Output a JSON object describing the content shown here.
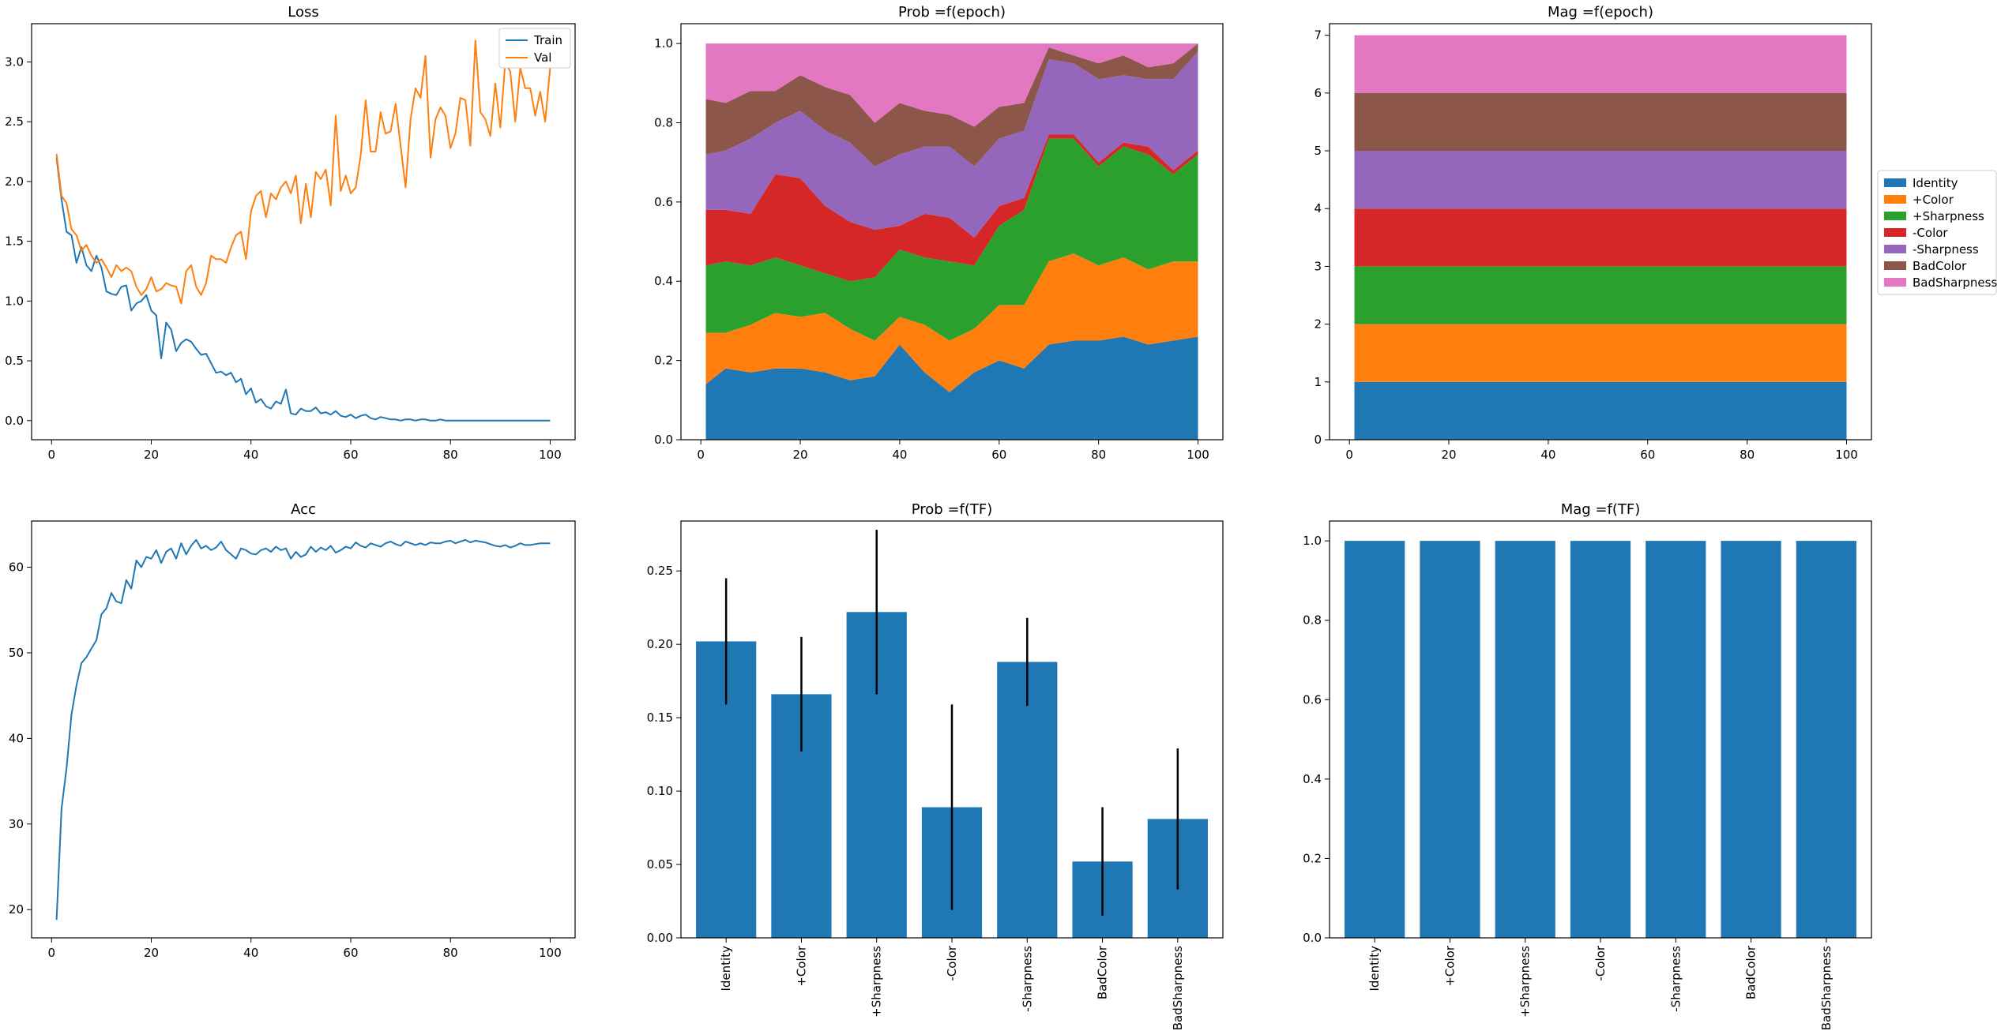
{
  "chart_data": [
    {
      "type": "line",
      "title": "Loss",
      "xlabel": "",
      "ylabel": "",
      "xlim": [
        -4,
        105
      ],
      "ylim": [
        -0.16,
        3.32
      ],
      "xticks": [
        0,
        20,
        40,
        60,
        80,
        100
      ],
      "yticks": [
        0.0,
        0.5,
        1.0,
        1.5,
        2.0,
        2.5,
        3.0
      ],
      "legend": "top-right",
      "series": [
        {
          "name": "Train",
          "color": "#1f77b4",
          "x": [
            1,
            2,
            3,
            4,
            5,
            6,
            7,
            8,
            9,
            10,
            11,
            12,
            13,
            14,
            15,
            16,
            17,
            18,
            19,
            20,
            21,
            22,
            23,
            24,
            25,
            26,
            27,
            28,
            29,
            30,
            31,
            32,
            33,
            34,
            35,
            36,
            37,
            38,
            39,
            40,
            41,
            42,
            43,
            44,
            45,
            46,
            47,
            48,
            49,
            50,
            51,
            52,
            53,
            54,
            55,
            56,
            57,
            58,
            59,
            60,
            61,
            62,
            63,
            64,
            65,
            66,
            67,
            68,
            69,
            70,
            71,
            72,
            73,
            74,
            75,
            76,
            77,
            78,
            79,
            80,
            81,
            82,
            83,
            84,
            85,
            86,
            87,
            88,
            89,
            90,
            91,
            92,
            93,
            94,
            95,
            96,
            97,
            98,
            99,
            100
          ],
          "values": [
            2.2,
            1.85,
            1.58,
            1.55,
            1.32,
            1.45,
            1.3,
            1.25,
            1.38,
            1.28,
            1.08,
            1.06,
            1.05,
            1.12,
            1.13,
            0.92,
            0.98,
            1.0,
            1.05,
            0.92,
            0.88,
            0.52,
            0.82,
            0.76,
            0.58,
            0.65,
            0.68,
            0.66,
            0.6,
            0.55,
            0.56,
            0.48,
            0.4,
            0.41,
            0.38,
            0.4,
            0.32,
            0.35,
            0.22,
            0.27,
            0.15,
            0.18,
            0.12,
            0.1,
            0.16,
            0.14,
            0.26,
            0.06,
            0.05,
            0.1,
            0.08,
            0.08,
            0.11,
            0.06,
            0.07,
            0.05,
            0.08,
            0.04,
            0.03,
            0.05,
            0.02,
            0.04,
            0.05,
            0.02,
            0.01,
            0.03,
            0.02,
            0.01,
            0.01,
            0.0,
            0.01,
            0.01,
            0.0,
            0.01,
            0.01,
            0.0,
            0.0,
            0.01,
            0.0,
            0.0,
            0.0,
            0.0,
            0.0,
            0.0,
            0.0,
            0.0,
            0.0,
            0.0,
            0.0,
            0.0,
            0.0,
            0.0,
            0.0,
            0.0,
            0.0,
            0.0,
            0.0,
            0.0,
            0.0,
            0.0
          ]
        },
        {
          "name": "Val",
          "color": "#ff7f0e",
          "x": [
            1,
            2,
            3,
            4,
            5,
            6,
            7,
            8,
            9,
            10,
            11,
            12,
            13,
            14,
            15,
            16,
            17,
            18,
            19,
            20,
            21,
            22,
            23,
            24,
            25,
            26,
            27,
            28,
            29,
            30,
            31,
            32,
            33,
            34,
            35,
            36,
            37,
            38,
            39,
            40,
            41,
            42,
            43,
            44,
            45,
            46,
            47,
            48,
            49,
            50,
            51,
            52,
            53,
            54,
            55,
            56,
            57,
            58,
            59,
            60,
            61,
            62,
            63,
            64,
            65,
            66,
            67,
            68,
            69,
            70,
            71,
            72,
            73,
            74,
            75,
            76,
            77,
            78,
            79,
            80,
            81,
            82,
            83,
            84,
            85,
            86,
            87,
            88,
            89,
            90,
            91,
            92,
            93,
            94,
            95,
            96,
            97,
            98,
            99,
            100
          ],
          "values": [
            2.23,
            1.88,
            1.82,
            1.6,
            1.55,
            1.42,
            1.47,
            1.38,
            1.32,
            1.35,
            1.28,
            1.2,
            1.3,
            1.25,
            1.28,
            1.25,
            1.12,
            1.05,
            1.1,
            1.2,
            1.08,
            1.1,
            1.15,
            1.13,
            1.12,
            0.98,
            1.25,
            1.3,
            1.12,
            1.05,
            1.15,
            1.38,
            1.35,
            1.35,
            1.32,
            1.45,
            1.55,
            1.58,
            1.35,
            1.75,
            1.88,
            1.92,
            1.7,
            1.9,
            1.85,
            1.95,
            2.0,
            1.9,
            2.05,
            1.65,
            1.98,
            1.7,
            2.08,
            2.02,
            2.1,
            1.8,
            2.55,
            1.92,
            2.05,
            1.9,
            1.95,
            2.22,
            2.68,
            2.25,
            2.25,
            2.58,
            2.4,
            2.42,
            2.65,
            2.3,
            1.95,
            2.52,
            2.78,
            2.7,
            3.05,
            2.2,
            2.52,
            2.62,
            2.55,
            2.28,
            2.4,
            2.7,
            2.68,
            2.3,
            3.18,
            2.58,
            2.52,
            2.38,
            2.82,
            2.45,
            3.0,
            2.92,
            2.5,
            2.95,
            2.78,
            2.78,
            2.55,
            2.75,
            2.5,
            2.95
          ]
        }
      ]
    },
    {
      "type": "area",
      "stacked": true,
      "title": "Prob =f(epoch)",
      "xlabel": "",
      "ylabel": "",
      "xlim": [
        -4,
        105
      ],
      "ylim": [
        0,
        1.05
      ],
      "xticks": [
        0,
        20,
        40,
        60,
        80,
        100
      ],
      "yticks": [
        0.0,
        0.2,
        0.4,
        0.6,
        0.8,
        1.0
      ],
      "x": [
        1,
        5,
        10,
        15,
        20,
        25,
        30,
        35,
        40,
        45,
        50,
        55,
        60,
        65,
        70,
        75,
        80,
        85,
        90,
        95,
        100
      ],
      "series": [
        {
          "name": "Identity",
          "color": "#1f77b4",
          "values": [
            0.14,
            0.18,
            0.17,
            0.18,
            0.18,
            0.17,
            0.15,
            0.16,
            0.24,
            0.17,
            0.12,
            0.17,
            0.2,
            0.18,
            0.24,
            0.25,
            0.25,
            0.26,
            0.24,
            0.25,
            0.26
          ]
        },
        {
          "name": "+Color",
          "color": "#ff7f0e",
          "values": [
            0.13,
            0.09,
            0.12,
            0.14,
            0.13,
            0.15,
            0.13,
            0.09,
            0.07,
            0.12,
            0.13,
            0.11,
            0.14,
            0.16,
            0.21,
            0.22,
            0.19,
            0.2,
            0.19,
            0.2,
            0.19
          ]
        },
        {
          "name": "+Sharpness",
          "color": "#2ca02c",
          "values": [
            0.17,
            0.18,
            0.15,
            0.14,
            0.13,
            0.1,
            0.12,
            0.16,
            0.17,
            0.17,
            0.2,
            0.16,
            0.2,
            0.24,
            0.31,
            0.29,
            0.25,
            0.28,
            0.29,
            0.22,
            0.27
          ]
        },
        {
          "name": "-Color",
          "color": "#d62728",
          "values": [
            0.14,
            0.13,
            0.13,
            0.21,
            0.22,
            0.17,
            0.15,
            0.12,
            0.06,
            0.11,
            0.11,
            0.07,
            0.05,
            0.03,
            0.01,
            0.01,
            0.01,
            0.01,
            0.02,
            0.01,
            0.01
          ]
        },
        {
          "name": "-Sharpness",
          "color": "#9467bd",
          "values": [
            0.14,
            0.15,
            0.19,
            0.13,
            0.17,
            0.19,
            0.2,
            0.16,
            0.18,
            0.17,
            0.18,
            0.18,
            0.17,
            0.17,
            0.19,
            0.18,
            0.21,
            0.17,
            0.17,
            0.23,
            0.25
          ]
        },
        {
          "name": "BadColor",
          "color": "#8c564b",
          "values": [
            0.14,
            0.12,
            0.12,
            0.08,
            0.09,
            0.11,
            0.12,
            0.11,
            0.13,
            0.09,
            0.08,
            0.1,
            0.08,
            0.07,
            0.03,
            0.02,
            0.04,
            0.05,
            0.03,
            0.04,
            0.02
          ]
        },
        {
          "name": "BadSharpness",
          "color": "#e377c2",
          "values": [
            0.14,
            0.15,
            0.12,
            0.12,
            0.08,
            0.11,
            0.13,
            0.2,
            0.15,
            0.17,
            0.18,
            0.21,
            0.16,
            0.15,
            0.01,
            0.03,
            0.05,
            0.03,
            0.06,
            0.05,
            0.0
          ]
        }
      ]
    },
    {
      "type": "area",
      "stacked": true,
      "title": "Mag =f(epoch)",
      "xlabel": "",
      "ylabel": "",
      "xlim": [
        -4,
        105
      ],
      "ylim": [
        0,
        7.2
      ],
      "xticks": [
        0,
        20,
        40,
        60,
        80,
        100
      ],
      "yticks": [
        0,
        1,
        2,
        3,
        4,
        5,
        6,
        7
      ],
      "legend": "outside right",
      "x": [
        1,
        100
      ],
      "series": [
        {
          "name": "Identity",
          "color": "#1f77b4",
          "values": [
            1,
            1
          ]
        },
        {
          "name": "+Color",
          "color": "#ff7f0e",
          "values": [
            1,
            1
          ]
        },
        {
          "name": "+Sharpness",
          "color": "#2ca02c",
          "values": [
            1,
            1
          ]
        },
        {
          "name": "-Color",
          "color": "#d62728",
          "values": [
            1,
            1
          ]
        },
        {
          "name": "-Sharpness",
          "color": "#9467bd",
          "values": [
            1,
            1
          ]
        },
        {
          "name": "BadColor",
          "color": "#8c564b",
          "values": [
            1,
            1
          ]
        },
        {
          "name": "BadSharpness",
          "color": "#e377c2",
          "values": [
            1,
            1
          ]
        }
      ]
    },
    {
      "type": "line",
      "title": "Acc",
      "xlabel": "",
      "ylabel": "",
      "xlim": [
        -4,
        105
      ],
      "ylim": [
        16.7,
        65.4
      ],
      "xticks": [
        0,
        20,
        40,
        60,
        80,
        100
      ],
      "yticks": [
        20,
        30,
        40,
        50,
        60
      ],
      "series": [
        {
          "name": "",
          "color": "#1f77b4",
          "x": [
            1,
            2,
            3,
            4,
            5,
            6,
            7,
            8,
            9,
            10,
            11,
            12,
            13,
            14,
            15,
            16,
            17,
            18,
            19,
            20,
            21,
            22,
            23,
            24,
            25,
            26,
            27,
            28,
            29,
            30,
            31,
            32,
            33,
            34,
            35,
            36,
            37,
            38,
            39,
            40,
            41,
            42,
            43,
            44,
            45,
            46,
            47,
            48,
            49,
            50,
            51,
            52,
            53,
            54,
            55,
            56,
            57,
            58,
            59,
            60,
            61,
            62,
            63,
            64,
            65,
            66,
            67,
            68,
            69,
            70,
            71,
            72,
            73,
            74,
            75,
            76,
            77,
            78,
            79,
            80,
            81,
            82,
            83,
            84,
            85,
            86,
            87,
            88,
            89,
            90,
            91,
            92,
            93,
            94,
            95,
            96,
            97,
            98,
            99,
            100
          ],
          "values": [
            18.8,
            31.8,
            36.5,
            42.8,
            46.2,
            48.8,
            49.5,
            50.5,
            51.5,
            54.5,
            55.2,
            57.0,
            56.0,
            55.8,
            58.5,
            57.5,
            60.8,
            60.0,
            61.2,
            61.0,
            62.0,
            60.5,
            61.8,
            62.2,
            61.0,
            62.8,
            61.5,
            62.5,
            63.2,
            62.2,
            62.5,
            62.0,
            62.3,
            63.0,
            62.0,
            61.5,
            61.0,
            62.2,
            62.0,
            61.6,
            61.5,
            62.0,
            62.2,
            61.8,
            62.4,
            62.0,
            62.2,
            61.0,
            61.8,
            61.2,
            61.5,
            62.4,
            61.8,
            62.3,
            62.0,
            62.5,
            61.7,
            62.0,
            62.4,
            62.2,
            62.9,
            62.5,
            62.3,
            62.8,
            62.6,
            62.4,
            62.8,
            63.0,
            62.7,
            62.5,
            63.0,
            62.8,
            62.6,
            62.8,
            62.6,
            62.9,
            62.8,
            62.8,
            63.0,
            63.1,
            62.8,
            63.0,
            63.2,
            62.9,
            63.1,
            63.0,
            62.9,
            62.7,
            62.5,
            62.4,
            62.6,
            62.3,
            62.5,
            62.8,
            62.6,
            62.6,
            62.7,
            62.8,
            62.8,
            62.8
          ]
        }
      ]
    },
    {
      "type": "bar",
      "title": "Prob =f(TF)",
      "xlabel": "",
      "ylabel": "",
      "ylim": [
        0,
        0.284
      ],
      "yticks": [
        0.0,
        0.05,
        0.1,
        0.15,
        0.2,
        0.25
      ],
      "color": "#1f77b4",
      "categories": [
        "Identity",
        "+Color",
        "+Sharpness",
        "-Color",
        "-Sharpness",
        "BadColor",
        "BadSharpness"
      ],
      "values": [
        0.202,
        0.166,
        0.222,
        0.089,
        0.188,
        0.052,
        0.081
      ],
      "errors": [
        0.043,
        0.039,
        0.056,
        0.07,
        0.03,
        0.037,
        0.048
      ]
    },
    {
      "type": "bar",
      "title": "Mag =f(TF)",
      "xlabel": "",
      "ylabel": "",
      "ylim": [
        0,
        1.05
      ],
      "yticks": [
        0.0,
        0.2,
        0.4,
        0.6,
        0.8,
        1.0
      ],
      "color": "#1f77b4",
      "categories": [
        "Identity",
        "+Color",
        "+Sharpness",
        "-Color",
        "-Sharpness",
        "BadColor",
        "BadSharpness"
      ],
      "values": [
        1,
        1,
        1,
        1,
        1,
        1,
        1
      ]
    }
  ]
}
